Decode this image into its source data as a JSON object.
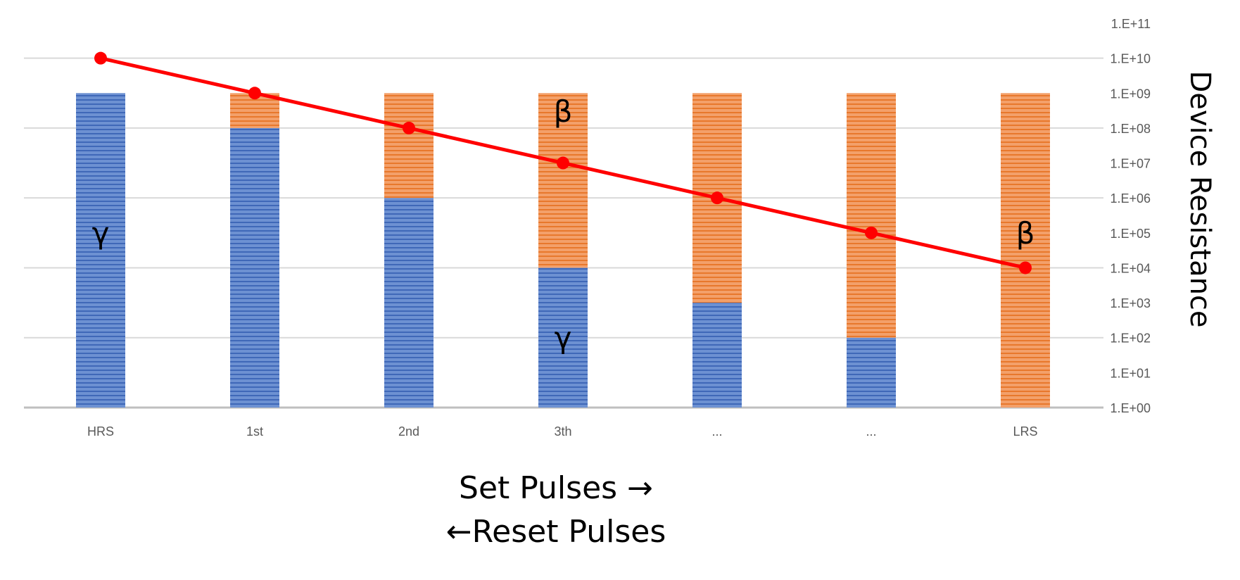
{
  "chart_data": {
    "type": "bar",
    "stacked": true,
    "y_scale": "log",
    "categories": [
      "HRS",
      "1st",
      "2nd",
      "3th",
      "...",
      "...",
      "LRS"
    ],
    "series": [
      {
        "values": [
          1000000000.0,
          100000000.0,
          1000000.0,
          10000.0,
          1000.0,
          100.0,
          1
        ],
        "color": "#4472C4",
        "pattern": "horizontal-lines"
      },
      {
        "values": [
          1000000000.0,
          1000000000.0,
          1000000000.0,
          1000000000.0,
          1000000000.0,
          1000000000.0,
          1000000000.0
        ],
        "color": "#ED7D31",
        "pattern": "horizontal-lines",
        "note": "fills from the top of the blue segment up to 1e9"
      }
    ],
    "line_series": {
      "color": "#FF0000",
      "values": [
        10000000000.0,
        1000000000.0,
        100000000.0,
        10000000.0,
        1000000.0,
        100000.0,
        10000.0
      ]
    },
    "y_ticks": [
      "1.E+00",
      "1.E+01",
      "1.E+02",
      "1.E+03",
      "1.E+04",
      "1.E+05",
      "1.E+06",
      "1.E+07",
      "1.E+08",
      "1.E+09",
      "1.E+10",
      "1.E+11"
    ],
    "ylim": [
      1,
      100000000000.0
    ],
    "ylabel": "Device Resistance",
    "xlabel_line1": "Set Pulses →",
    "xlabel_line2": "←Reset Pulses",
    "annotations": [
      {
        "text": "γ",
        "category_index": 0,
        "y": 100000.0
      },
      {
        "text": "β",
        "category_index": 3,
        "y": 300000000.0
      },
      {
        "text": "γ",
        "category_index": 3,
        "y": 100.0
      },
      {
        "text": "β",
        "category_index": 6,
        "y": 100000.0
      }
    ],
    "grid": true,
    "y_axis_side": "right"
  }
}
